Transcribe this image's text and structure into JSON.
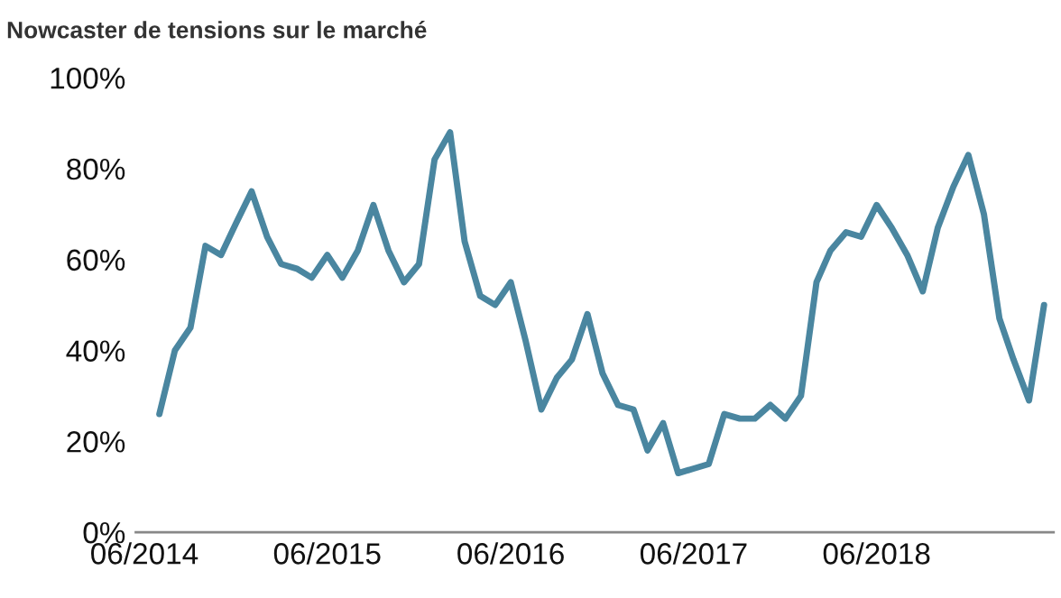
{
  "chart_data": {
    "type": "line",
    "title": "Nowcaster de tensions sur le marché",
    "x": [
      "2014-07",
      "2014-08",
      "2014-09",
      "2014-10",
      "2014-11",
      "2014-12",
      "2015-01",
      "2015-02",
      "2015-03",
      "2015-04",
      "2015-05",
      "2015-06",
      "2015-07",
      "2015-08",
      "2015-09",
      "2015-10",
      "2015-11",
      "2015-12",
      "2016-01",
      "2016-02",
      "2016-03",
      "2016-04",
      "2016-05",
      "2016-06",
      "2016-07",
      "2016-08",
      "2016-09",
      "2016-10",
      "2016-11",
      "2016-12",
      "2017-01",
      "2017-02",
      "2017-03",
      "2017-04",
      "2017-05",
      "2017-06",
      "2017-07",
      "2017-08",
      "2017-09",
      "2017-10",
      "2017-11",
      "2017-12",
      "2018-01",
      "2018-02",
      "2018-03",
      "2018-04",
      "2018-05",
      "2018-06",
      "2018-07",
      "2018-08",
      "2018-09",
      "2018-10",
      "2018-11",
      "2018-12",
      "2019-01",
      "2019-02",
      "2019-03",
      "2019-04",
      "2019-05"
    ],
    "series": [
      {
        "color": "#4a86a0",
        "values": [
          26,
          40,
          45,
          63,
          61,
          68,
          75,
          65,
          59,
          58,
          56,
          61,
          56,
          62,
          72,
          62,
          55,
          59,
          82,
          88,
          64,
          52,
          50,
          55,
          42,
          27,
          34,
          38,
          48,
          35,
          28,
          27,
          18,
          24,
          13,
          14,
          15,
          26,
          25,
          25,
          28,
          25,
          30,
          55,
          62,
          66,
          65,
          72,
          67,
          61,
          53,
          67,
          76,
          83,
          70,
          47,
          38,
          29,
          50
        ]
      }
    ],
    "xlim": [
      "2014-05-15",
      "2019-05-20"
    ],
    "xticks": [
      {
        "value": "2014-06",
        "label": "06/2014"
      },
      {
        "value": "2015-06",
        "label": "06/2015"
      },
      {
        "value": "2016-06",
        "label": "06/2016"
      },
      {
        "value": "2017-06",
        "label": "06/2017"
      },
      {
        "value": "2018-06",
        "label": "06/2018"
      }
    ],
    "ylim": [
      0,
      100
    ],
    "yticks": [
      {
        "value": 0,
        "label": "0%"
      },
      {
        "value": 20,
        "label": "20%"
      },
      {
        "value": 40,
        "label": "40%"
      },
      {
        "value": 60,
        "label": "60%"
      },
      {
        "value": 80,
        "label": "80%"
      },
      {
        "value": 100,
        "label": "100%"
      }
    ],
    "grid": false,
    "legend": false,
    "marker": "none",
    "line_style": "solid"
  }
}
